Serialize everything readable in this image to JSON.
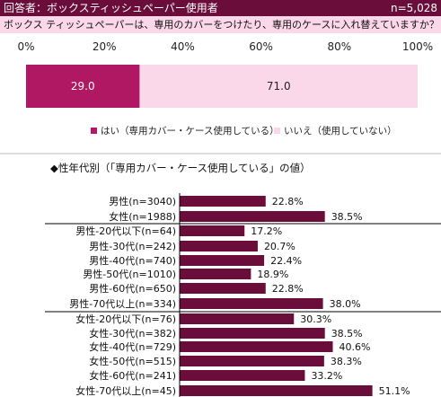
{
  "header": {
    "title": "回答者：ボックスティッシュペーパー使用者",
    "n": "n=5,028"
  },
  "question": "ボックス ティッシュペーパーは、専用のカバーをつけたり、専用のケースに入れ替えていますか？ （単一回答）",
  "colors": {
    "header_bg": "#6b0d3a",
    "yes": "#b01863",
    "no": "#fbd7ea",
    "bar": "#6b0d3a"
  },
  "chart_data": [
    {
      "type": "bar",
      "orientation": "horizontal-stacked",
      "axis_ticks": [
        "0%",
        "20%",
        "40%",
        "60%",
        "80%",
        "100%"
      ],
      "xlim": [
        0,
        100
      ],
      "series": [
        {
          "name": "はい（専用カバー・ケース使用している）",
          "values": [
            29.0
          ],
          "label": "29.0"
        },
        {
          "name": "いいえ（使用していない）",
          "values": [
            71.0
          ],
          "label": "71.0"
        }
      ],
      "legend_position": "bottom"
    },
    {
      "type": "bar",
      "orientation": "horizontal",
      "title": "◆性年代別（「専用カバー・ケース使用している」の値）",
      "categories": [
        "男性(n=3040)",
        "女性(n=1988)",
        "男性-20代以下(n=64)",
        "男性-30代(n=242)",
        "男性-40代(n=740)",
        "男性-50代(n=1010)",
        "男性-60代(n=650)",
        "男性-70代以上(n=334)",
        "女性-20代以下(n=76)",
        "女性-30代(n=382)",
        "女性-40代(n=729)",
        "女性-50代(n=515)",
        "女性-60代(n=241)",
        "女性-70代以上(n=45)"
      ],
      "values": [
        22.8,
        38.5,
        17.2,
        20.7,
        22.4,
        18.9,
        22.8,
        38.0,
        30.3,
        38.5,
        40.6,
        38.3,
        33.2,
        51.1
      ],
      "labels": [
        "22.8%",
        "38.5%",
        "17.2%",
        "20.7%",
        "22.4%",
        "18.9%",
        "22.8%",
        "38.0%",
        "30.3%",
        "38.5%",
        "40.6%",
        "38.3%",
        "33.2%",
        "51.1%"
      ]
    }
  ]
}
